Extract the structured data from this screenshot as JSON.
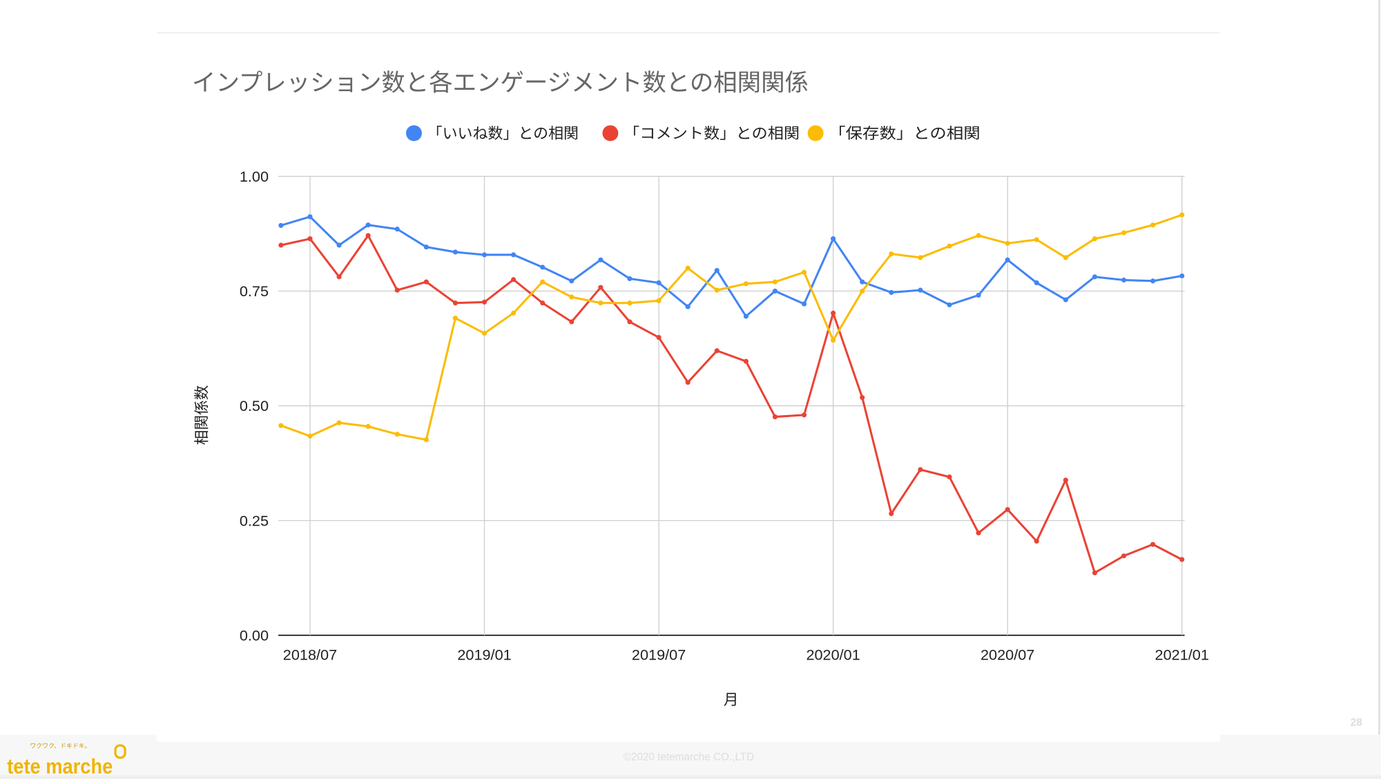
{
  "slide": {
    "page_number": "28",
    "footer": "©2020 tetemarche CO.,LTD",
    "logo_text": "tete marche",
    "logo_tagline": "ワクワク、ドキドキ。"
  },
  "chart_data": {
    "type": "line",
    "title": "インプレッション数と各エンゲージメント数との相関関係",
    "xlabel": "月",
    "ylabel": "相関係数",
    "ylim": [
      0,
      1
    ],
    "yticks": [
      "0.00",
      "0.25",
      "0.50",
      "0.75",
      "1.00"
    ],
    "x": [
      "2018/06",
      "2018/07",
      "2018/08",
      "2018/09",
      "2018/10",
      "2018/11",
      "2018/12",
      "2019/01",
      "2019/02",
      "2019/03",
      "2019/04",
      "2019/05",
      "2019/06",
      "2019/07",
      "2019/08",
      "2019/09",
      "2019/10",
      "2019/11",
      "2019/12",
      "2020/01",
      "2020/02",
      "2020/03",
      "2020/04",
      "2020/05",
      "2020/06",
      "2020/07",
      "2020/08",
      "2020/09",
      "2020/10",
      "2020/11",
      "2020/12",
      "2021/01"
    ],
    "xticks": [
      "2018/07",
      "2019/01",
      "2019/07",
      "2020/01",
      "2020/07",
      "2021/01"
    ],
    "grid": true,
    "legend_position": "top",
    "series": [
      {
        "name": "「いいね数」との相関",
        "color": "#4285f4",
        "values": [
          0.893,
          0.912,
          0.85,
          0.894,
          0.885,
          0.846,
          0.835,
          0.829,
          0.829,
          0.802,
          0.772,
          0.818,
          0.777,
          0.768,
          0.716,
          0.795,
          0.695,
          0.75,
          0.722,
          0.864,
          0.77,
          0.747,
          0.752,
          0.72,
          0.741,
          0.818,
          0.768,
          0.731,
          0.781,
          0.774,
          0.772,
          0.783
        ]
      },
      {
        "name": "「コメント数」との相関",
        "color": "#ea4335",
        "values": [
          0.85,
          0.864,
          0.781,
          0.871,
          0.752,
          0.77,
          0.724,
          0.726,
          0.775,
          0.724,
          0.683,
          0.758,
          0.683,
          0.649,
          0.551,
          0.62,
          0.597,
          0.476,
          0.48,
          0.702,
          0.518,
          0.265,
          0.361,
          0.345,
          0.223,
          0.274,
          0.205,
          0.338,
          0.136,
          0.173,
          0.198,
          0.165
        ]
      },
      {
        "name": "「保存数」との相関",
        "color": "#fbbc04",
        "values": [
          0.457,
          0.434,
          0.463,
          0.455,
          0.438,
          0.426,
          0.691,
          0.658,
          0.702,
          0.77,
          0.737,
          0.724,
          0.724,
          0.729,
          0.8,
          0.752,
          0.766,
          0.77,
          0.791,
          0.643,
          0.75,
          0.831,
          0.823,
          0.848,
          0.871,
          0.854,
          0.862,
          0.823,
          0.864,
          0.877,
          0.894,
          0.916
        ]
      }
    ]
  }
}
